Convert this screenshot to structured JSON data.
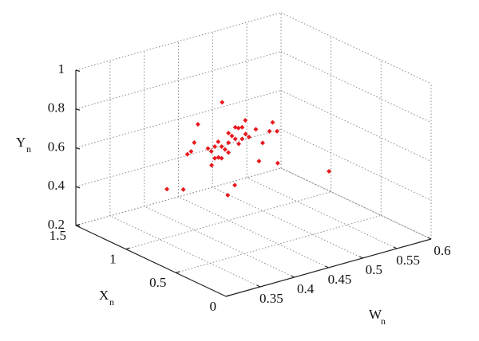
{
  "chart_data": {
    "type": "scatter3d",
    "wlabel": {
      "main": "W",
      "sub": "n"
    },
    "xlabel": {
      "main": "X",
      "sub": "n"
    },
    "ylabel": {
      "main": "Y",
      "sub": "n"
    },
    "wlim": [
      0.3,
      0.6
    ],
    "wticks": [
      0.35,
      0.4,
      0.45,
      0.5,
      0.55,
      0.6
    ],
    "xlim": [
      0,
      1.5
    ],
    "xticks": [
      0,
      0.5,
      1,
      1.5
    ],
    "ylim": [
      0.2,
      1
    ],
    "yticks": [
      0.2,
      0.4,
      0.6,
      0.8,
      1
    ],
    "grid": true,
    "color": "#e8191e",
    "points": {
      "w": [
        0.45,
        0.46,
        0.44,
        0.47,
        0.43,
        0.455,
        0.445,
        0.465,
        0.435,
        0.475,
        0.425,
        0.45,
        0.45,
        0.46,
        0.44,
        0.48,
        0.42,
        0.47,
        0.43,
        0.49,
        0.41,
        0.45,
        0.45,
        0.5,
        0.4,
        0.46,
        0.44,
        0.51,
        0.39,
        0.48,
        0.42,
        0.384,
        0.597,
        0.449,
        0.521,
        0.522,
        0.43,
        0.47,
        0.36,
        0.5
      ],
      "x": [
        1,
        1,
        1,
        1,
        1,
        1,
        1,
        1,
        1,
        1,
        1,
        1,
        1,
        1,
        1,
        1,
        1,
        1,
        1,
        1,
        1.1,
        0.9,
        1.1,
        1,
        1,
        0.9,
        1.1,
        1,
        1,
        0.9,
        1.1,
        1,
        1,
        1,
        1,
        1,
        0.8,
        1.2,
        1,
        0.9
      ],
      "y": [
        0.6,
        0.61,
        0.59,
        0.6,
        0.6,
        0.63,
        0.57,
        0.58,
        0.62,
        0.62,
        0.58,
        0.65,
        0.55,
        0.67,
        0.53,
        0.6,
        0.6,
        0.66,
        0.54,
        0.63,
        0.57,
        0.7,
        0.5,
        0.55,
        0.65,
        0.73,
        0.47,
        0.6,
        0.6,
        0.5,
        0.7,
        0.424,
        0.308,
        0.331,
        0.589,
        0.424,
        0.45,
        0.74,
        0.45,
        0.68
      ]
    }
  }
}
